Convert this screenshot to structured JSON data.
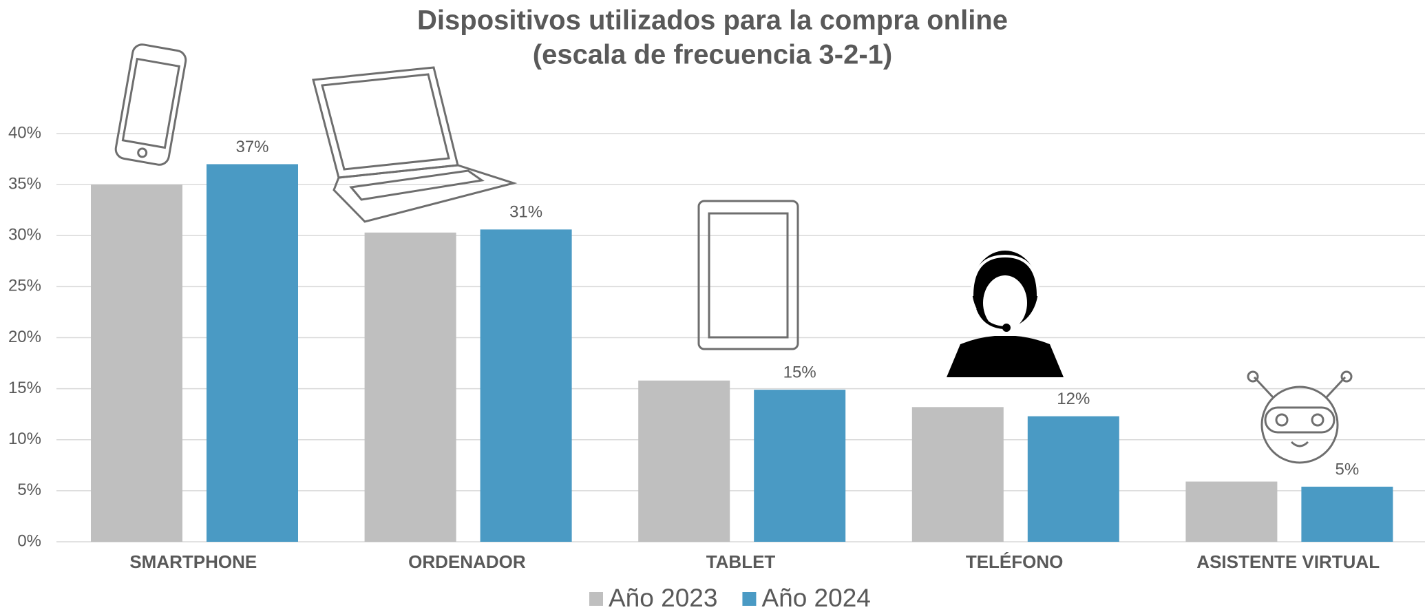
{
  "chart_data": {
    "type": "bar",
    "title": "Dispositivos utilizados para la compra online",
    "subtitle": "(escala de frecuencia 3-2-1)",
    "categories": [
      "SMARTPHONE",
      "ORDENADOR",
      "TABLET",
      "TELÉFONO",
      "ASISTENTE VIRTUAL"
    ],
    "series": [
      {
        "name": "Año 2023",
        "color": "#bfbfbf",
        "values": [
          35,
          30.3,
          15.8,
          13.2,
          5.9
        ]
      },
      {
        "name": "Año 2024",
        "color": "#4a9ac4",
        "values": [
          37,
          30.6,
          14.9,
          12.3,
          5.4
        ],
        "value_labels": [
          "37%",
          "31%",
          "15%",
          "12%",
          "5%"
        ]
      }
    ],
    "ylim": [
      0,
      40
    ],
    "yticks": [
      {
        "value": 0,
        "label": "0%"
      },
      {
        "value": 5,
        "label": "5%"
      },
      {
        "value": 10,
        "label": "10%"
      },
      {
        "value": 15,
        "label": "15%"
      },
      {
        "value": 20,
        "label": "20%"
      },
      {
        "value": 25,
        "label": "25%"
      },
      {
        "value": 30,
        "label": "30%"
      },
      {
        "value": 35,
        "label": "35%"
      },
      {
        "value": 40,
        "label": "40%"
      }
    ],
    "grid": true
  }
}
